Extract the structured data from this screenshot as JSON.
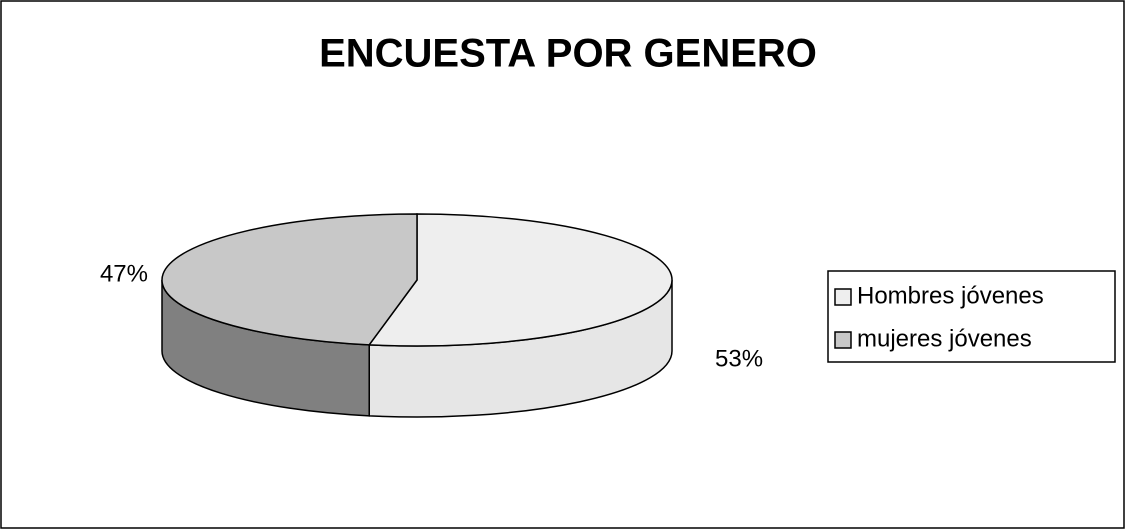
{
  "chart_data": {
    "type": "pie3d",
    "title": "ENCUESTA POR GENERO",
    "categories": [
      "Hombres jóvenes",
      "mujeres jóvenes"
    ],
    "values": [
      53,
      47
    ],
    "value_labels": [
      "53%",
      "47%"
    ],
    "colors": [
      "#eeeeee",
      "#c8c8c8"
    ],
    "side_colors": [
      "#e6e6e6",
      "#808080"
    ],
    "legend": "right"
  }
}
